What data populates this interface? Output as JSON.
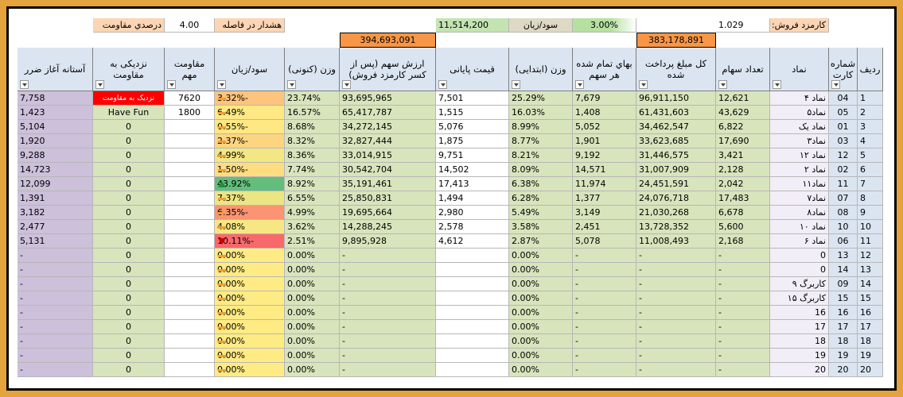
{
  "top": {
    "fee_label": "کارمزد فروش:",
    "fee": "1.029",
    "profit_pct": "3.00%",
    "profit_label": "سود/زیان",
    "profit": "11,514,200",
    "warn_label": "هشدار در فاصله",
    "warn_value": "4.00",
    "warn_unit": "درصدي مقاومت",
    "total_paid": "383,178,891",
    "total_value": "394,693,091"
  },
  "table": {
    "headers": [
      "ردیف",
      "شماره کارت",
      "نماد",
      "تعداد سهام",
      "کل مبلغ پرداخت شده",
      "بهاي تمام شده هر سهم",
      "وزن (ابتدایی)",
      "قیمت پایانی",
      "ارزش سهم (پس از کسر کارمزد فروش)",
      "وزن (کنونی)",
      "سود/زیان",
      "مقاومت مهم",
      "نزدیکی به مقاومت",
      "آستانه آغاز ضرر"
    ],
    "profit_fills": [
      "#fcc47c",
      "#ffe984",
      "#fee883",
      "#fdd480",
      "#f3e783",
      "#fedd81",
      "#63be7b",
      "#ece583",
      "#fa9473",
      "#f5e884",
      "#f8696b",
      "#ffeb84",
      "#ffeb84",
      "#ffeb84",
      "#ffeb84",
      "#ffeb84",
      "#ffeb84",
      "#ffeb84",
      "#ffeb84",
      "#ffeb84"
    ],
    "rows": [
      [
        "1",
        "04",
        "نماد ۴",
        "12,621",
        "96,911,150",
        "7,679",
        "25.29%",
        "7,501",
        "93,695,965",
        "23.74%",
        "-3.32%",
        "7620",
        "نزدیک به مقاومت",
        "7,758"
      ],
      [
        "2",
        "05",
        "نماد۵",
        "43,629",
        "61,431,603",
        "1,408",
        "16.03%",
        "1,515",
        "65,417,787",
        "16.57%",
        "6.49%",
        "1800",
        "Have Fun",
        "1,423"
      ],
      [
        "3",
        "01",
        "نماد یک",
        "6,822",
        "34,462,547",
        "5,052",
        "8.99%",
        "5,076",
        "34,272,145",
        "8.68%",
        "-0.55%",
        null,
        "0",
        "5,104"
      ],
      [
        "4",
        "03",
        "نماد۳",
        "17,690",
        "33,623,685",
        "1,901",
        "8.77%",
        "1,875",
        "32,827,444",
        "8.32%",
        "-2.37%",
        null,
        "0",
        "1,920"
      ],
      [
        "5",
        "12",
        "نماد ۱۲",
        "3,421",
        "31,446,575",
        "9,192",
        "8.21%",
        "9,751",
        "33,014,915",
        "8.36%",
        "4.99%",
        null,
        "0",
        "9,288"
      ],
      [
        "6",
        "02",
        "نماد ۲",
        "2,128",
        "31,007,909",
        "14,571",
        "8.09%",
        "14,502",
        "30,542,704",
        "7.74%",
        "-1.50%",
        null,
        "0",
        "14,723"
      ],
      [
        "7",
        "11",
        "نماد۱۱",
        "2,042",
        "24,451,591",
        "11,974",
        "6.38%",
        "17,413",
        "35,191,461",
        "8.92%",
        "43.92%",
        null,
        "0",
        "12,099"
      ],
      [
        "8",
        "07",
        "نماد۷",
        "17,483",
        "24,076,718",
        "1,377",
        "6.28%",
        "1,494",
        "25,850,831",
        "6.55%",
        "7.37%",
        null,
        "0",
        "1,391"
      ],
      [
        "9",
        "08",
        "نماد۸",
        "6,678",
        "21,030,268",
        "3,149",
        "5.49%",
        "2,980",
        "19,695,664",
        "4.99%",
        "-6.35%",
        null,
        "0",
        "3,182"
      ],
      [
        "10",
        "10",
        "نماد ۱۰",
        "5,600",
        "13,728,352",
        "2,451",
        "3.58%",
        "2,578",
        "14,288,245",
        "3.62%",
        "4.08%",
        null,
        "0",
        "2,477"
      ],
      [
        "11",
        "06",
        "نماد ۶",
        "2,168",
        "11,008,493",
        "5,078",
        "2.87%",
        "4,612",
        "9,895,928",
        "2.51%",
        "-10.11%",
        null,
        "0",
        "5,131"
      ],
      [
        "12",
        "13",
        "0",
        "-",
        "-",
        "-",
        "0.00%",
        null,
        "-",
        "0.00%",
        "0.00%",
        null,
        "0",
        "-"
      ],
      [
        "13",
        "14",
        "0",
        "-",
        "-",
        "-",
        "0.00%",
        null,
        "-",
        "0.00%",
        "0.00%",
        null,
        "0",
        "-"
      ],
      [
        "14",
        "09",
        "کاربرگ ۹",
        "-",
        "-",
        "-",
        "0.00%",
        null,
        "-",
        "0.00%",
        "0.00%",
        null,
        "0",
        "-"
      ],
      [
        "15",
        "15",
        "کاربرگ ۱۵",
        "-",
        "-",
        "-",
        "0.00%",
        null,
        "-",
        "0.00%",
        "0.00%",
        null,
        "0",
        "-"
      ],
      [
        "16",
        "16",
        "16",
        "-",
        "-",
        "-",
        "0.00%",
        null,
        "-",
        "0.00%",
        "0.00%",
        null,
        "0",
        "-"
      ],
      [
        "17",
        "17",
        "17",
        "-",
        "-",
        "-",
        "0.00%",
        null,
        "-",
        "0.00%",
        "0.00%",
        null,
        "0",
        "-"
      ],
      [
        "18",
        "18",
        "18",
        "-",
        "-",
        "-",
        "0.00%",
        null,
        "-",
        "0.00%",
        "0.00%",
        null,
        "0",
        "-"
      ],
      [
        "19",
        "19",
        "19",
        "-",
        "-",
        "-",
        "0.00%",
        null,
        "-",
        "0.00%",
        "0.00%",
        null,
        "0",
        "-"
      ],
      [
        "20",
        "20",
        "20",
        "-",
        "-",
        "-",
        "0.00%",
        null,
        "-",
        "0.00%",
        "0.00%",
        null,
        "0",
        "-"
      ]
    ]
  }
}
